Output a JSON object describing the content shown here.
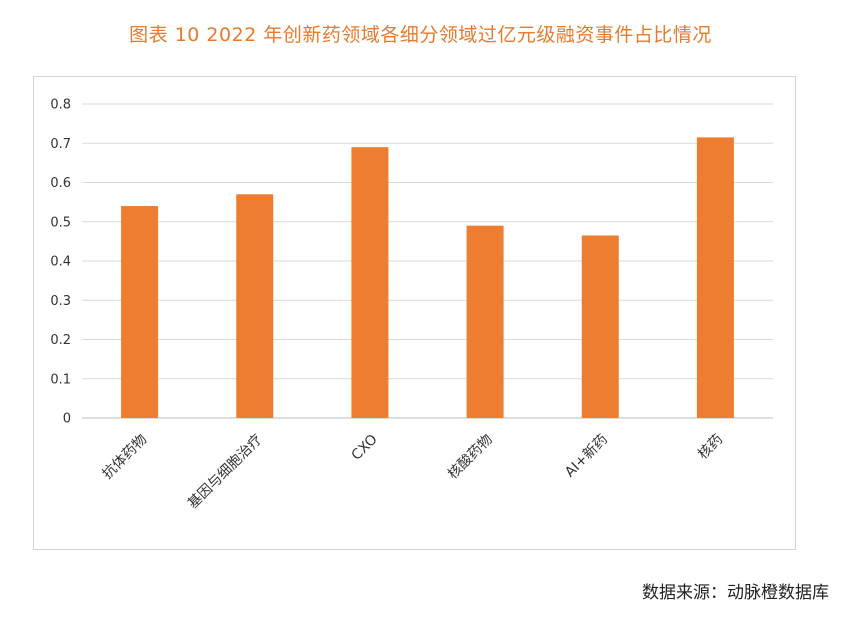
{
  "page": {
    "title": "图表  10 2022 年创新药领域各细分领域过亿元级融资事件占比情况",
    "source": "数据来源：动脉橙数据库"
  },
  "chart_data": {
    "type": "bar",
    "title": "图表  10 2022 年创新药领域各细分领域过亿元级融资事件占比情况",
    "xlabel": "",
    "ylabel": "",
    "categories": [
      "抗体药物",
      "基因与细胞治疗",
      "CXO",
      "核酸药物",
      "AI+新药",
      "核药"
    ],
    "values": [
      0.54,
      0.57,
      0.69,
      0.49,
      0.465,
      0.715
    ],
    "ylim": [
      0,
      0.8
    ],
    "yticks": [
      "0",
      "0.1",
      "0.2",
      "0.3",
      "0.4",
      "0.5",
      "0.6",
      "0.7",
      "0.8"
    ],
    "grid": true,
    "legend": "none",
    "colors": {
      "bar": "#ED7D31",
      "grid": "#d9d9d9",
      "title": "#E87A2E"
    }
  }
}
